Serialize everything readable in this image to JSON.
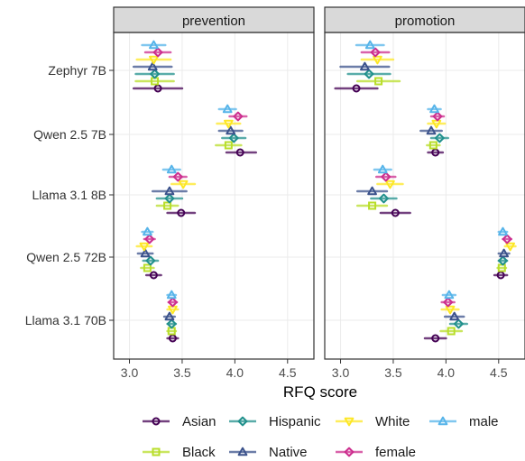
{
  "chart_data": {
    "type": "scatter",
    "title": "",
    "xlabel": "RFQ score",
    "ylabel": "",
    "xlim": [
      2.85,
      4.75
    ],
    "x_ticks": [
      "3.0",
      "3.5",
      "4.0",
      "4.5"
    ],
    "x_tick_values": [
      3.0,
      3.5,
      4.0,
      4.5
    ],
    "grid": true,
    "legend_position": "bottom",
    "models": [
      "Zephyr 7B",
      "Qwen 2.5 7B",
      "Llama 3.1 8B",
      "Qwen 2.5 72B",
      "Llama 3.1 70B"
    ],
    "facets": [
      "prevention",
      "promotion"
    ],
    "series": [
      {
        "name": "Asian",
        "color": "#440154",
        "shape": "circle",
        "prevention": [
          {
            "v": 3.27,
            "lo": 3.04,
            "hi": 3.5
          },
          {
            "v": 4.05,
            "lo": 3.92,
            "hi": 4.2
          },
          {
            "v": 3.49,
            "lo": 3.36,
            "hi": 3.62
          },
          {
            "v": 3.23,
            "lo": 3.16,
            "hi": 3.3
          },
          {
            "v": 3.41,
            "lo": 3.36,
            "hi": 3.46
          }
        ],
        "promotion": [
          {
            "v": 3.15,
            "lo": 2.95,
            "hi": 3.35
          },
          {
            "v": 3.9,
            "lo": 3.83,
            "hi": 3.97
          },
          {
            "v": 3.52,
            "lo": 3.38,
            "hi": 3.66
          },
          {
            "v": 4.52,
            "lo": 4.46,
            "hi": 4.58
          },
          {
            "v": 3.9,
            "lo": 3.8,
            "hi": 4.0
          }
        ]
      },
      {
        "name": "Black",
        "color": "#b8de29",
        "shape": "square",
        "prevention": [
          {
            "v": 3.24,
            "lo": 3.06,
            "hi": 3.42
          },
          {
            "v": 3.94,
            "lo": 3.82,
            "hi": 4.06
          },
          {
            "v": 3.36,
            "lo": 3.26,
            "hi": 3.46
          },
          {
            "v": 3.17,
            "lo": 3.11,
            "hi": 3.23
          },
          {
            "v": 3.4,
            "lo": 3.36,
            "hi": 3.44
          }
        ],
        "promotion": [
          {
            "v": 3.36,
            "lo": 3.16,
            "hi": 3.56
          },
          {
            "v": 3.88,
            "lo": 3.82,
            "hi": 3.94
          },
          {
            "v": 3.3,
            "lo": 3.16,
            "hi": 3.44
          },
          {
            "v": 4.53,
            "lo": 4.49,
            "hi": 4.57
          },
          {
            "v": 4.05,
            "lo": 3.95,
            "hi": 4.15
          }
        ]
      },
      {
        "name": "Hispanic",
        "color": "#21908c",
        "shape": "diamond",
        "prevention": [
          {
            "v": 3.24,
            "lo": 3.06,
            "hi": 3.42
          },
          {
            "v": 3.99,
            "lo": 3.88,
            "hi": 4.1
          },
          {
            "v": 3.38,
            "lo": 3.26,
            "hi": 3.5
          },
          {
            "v": 3.2,
            "lo": 3.13,
            "hi": 3.27
          },
          {
            "v": 3.4,
            "lo": 3.36,
            "hi": 3.44
          }
        ],
        "promotion": [
          {
            "v": 3.27,
            "lo": 3.07,
            "hi": 3.47
          },
          {
            "v": 3.94,
            "lo": 3.86,
            "hi": 4.02
          },
          {
            "v": 3.41,
            "lo": 3.29,
            "hi": 3.53
          },
          {
            "v": 4.54,
            "lo": 4.5,
            "hi": 4.58
          },
          {
            "v": 4.12,
            "lo": 4.04,
            "hi": 4.2
          }
        ]
      },
      {
        "name": "Native",
        "color": "#3b528b",
        "shape": "triangle-up",
        "prevention": [
          {
            "v": 3.22,
            "lo": 3.04,
            "hi": 3.4
          },
          {
            "v": 3.96,
            "lo": 3.85,
            "hi": 4.07
          },
          {
            "v": 3.38,
            "lo": 3.22,
            "hi": 3.54
          },
          {
            "v": 3.15,
            "lo": 3.08,
            "hi": 3.22
          },
          {
            "v": 3.38,
            "lo": 3.33,
            "hi": 3.43
          }
        ],
        "promotion": [
          {
            "v": 3.23,
            "lo": 3.0,
            "hi": 3.46
          },
          {
            "v": 3.86,
            "lo": 3.76,
            "hi": 3.96
          },
          {
            "v": 3.3,
            "lo": 3.16,
            "hi": 3.44
          },
          {
            "v": 4.55,
            "lo": 4.5,
            "hi": 4.6
          },
          {
            "v": 4.08,
            "lo": 3.99,
            "hi": 4.17
          }
        ]
      },
      {
        "name": "White",
        "color": "#fde725",
        "shape": "triangle-down",
        "prevention": [
          {
            "v": 3.23,
            "lo": 3.07,
            "hi": 3.39
          },
          {
            "v": 3.94,
            "lo": 3.83,
            "hi": 4.05
          },
          {
            "v": 3.51,
            "lo": 3.4,
            "hi": 3.62
          },
          {
            "v": 3.14,
            "lo": 3.07,
            "hi": 3.21
          },
          {
            "v": 3.41,
            "lo": 3.36,
            "hi": 3.46
          }
        ],
        "promotion": [
          {
            "v": 3.35,
            "lo": 3.2,
            "hi": 3.5
          },
          {
            "v": 3.91,
            "lo": 3.83,
            "hi": 3.99
          },
          {
            "v": 3.47,
            "lo": 3.35,
            "hi": 3.59
          },
          {
            "v": 4.61,
            "lo": 4.56,
            "hi": 4.66
          },
          {
            "v": 4.04,
            "lo": 3.96,
            "hi": 4.12
          }
        ]
      },
      {
        "name": "female",
        "color": "#cc2e8e",
        "shape": "diamond",
        "prevention": [
          {
            "v": 3.27,
            "lo": 3.15,
            "hi": 3.39
          },
          {
            "v": 4.03,
            "lo": 3.95,
            "hi": 4.11
          },
          {
            "v": 3.46,
            "lo": 3.38,
            "hi": 3.54
          },
          {
            "v": 3.19,
            "lo": 3.14,
            "hi": 3.24
          },
          {
            "v": 3.41,
            "lo": 3.37,
            "hi": 3.45
          }
        ],
        "promotion": [
          {
            "v": 3.33,
            "lo": 3.2,
            "hi": 3.46
          },
          {
            "v": 3.92,
            "lo": 3.86,
            "hi": 3.98
          },
          {
            "v": 3.43,
            "lo": 3.34,
            "hi": 3.52
          },
          {
            "v": 4.58,
            "lo": 4.54,
            "hi": 4.62
          },
          {
            "v": 4.02,
            "lo": 3.96,
            "hi": 4.08
          }
        ]
      },
      {
        "name": "male",
        "color": "#56b4e9",
        "shape": "triangle-up",
        "prevention": [
          {
            "v": 3.23,
            "lo": 3.12,
            "hi": 3.34
          },
          {
            "v": 3.93,
            "lo": 3.85,
            "hi": 4.01
          },
          {
            "v": 3.4,
            "lo": 3.32,
            "hi": 3.48
          },
          {
            "v": 3.17,
            "lo": 3.12,
            "hi": 3.22
          },
          {
            "v": 3.4,
            "lo": 3.36,
            "hi": 3.44
          }
        ],
        "promotion": [
          {
            "v": 3.28,
            "lo": 3.15,
            "hi": 3.41
          },
          {
            "v": 3.89,
            "lo": 3.83,
            "hi": 3.95
          },
          {
            "v": 3.4,
            "lo": 3.32,
            "hi": 3.48
          },
          {
            "v": 4.54,
            "lo": 4.5,
            "hi": 4.58
          },
          {
            "v": 4.03,
            "lo": 3.97,
            "hi": 4.09
          }
        ]
      }
    ],
    "legend_rows": [
      [
        "Asian",
        "Hispanic",
        "White",
        "male"
      ],
      [
        "Black",
        "Native",
        "female"
      ]
    ]
  }
}
